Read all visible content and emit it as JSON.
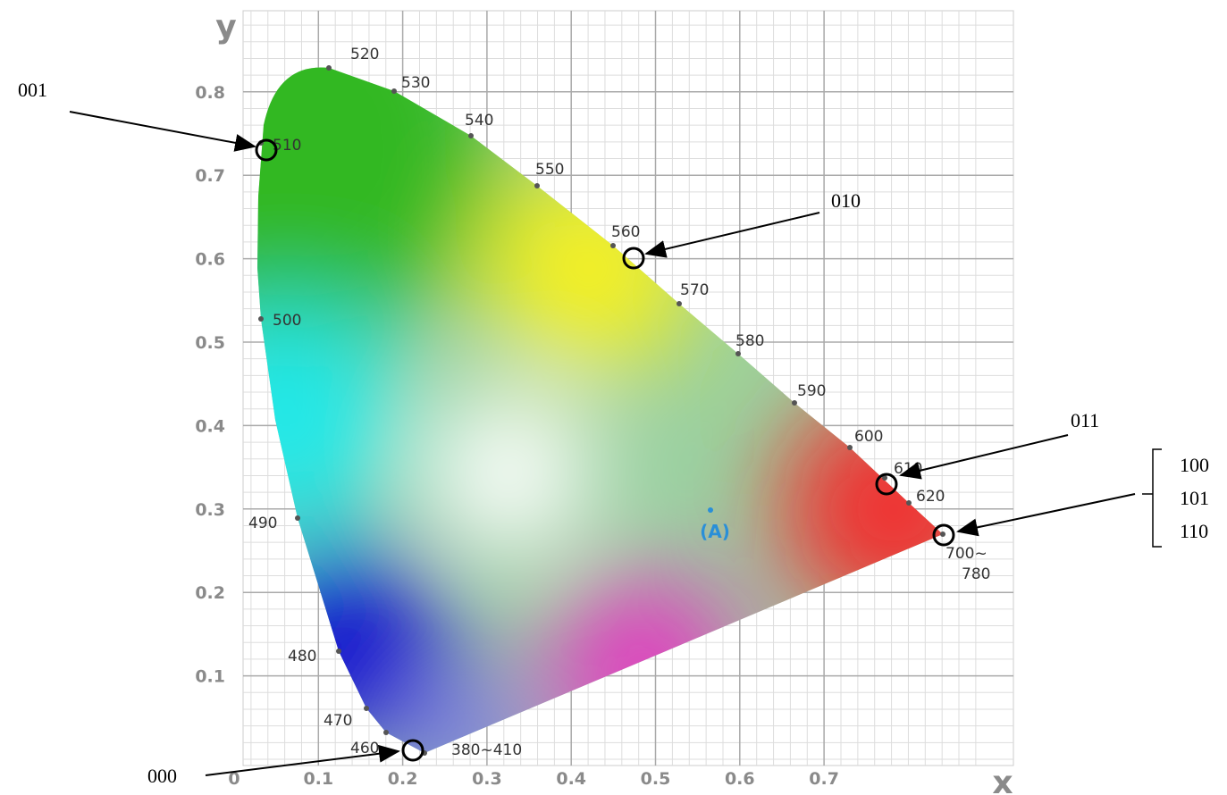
{
  "axes": {
    "x_label": "x",
    "y_label": "y",
    "xticks": [
      0,
      0.1,
      0.2,
      0.3,
      0.4,
      0.5,
      0.6,
      0.7
    ],
    "yticks": [
      0.1,
      0.2,
      0.3,
      0.4,
      0.5,
      0.6,
      0.7,
      0.8
    ]
  },
  "wavelengths": [
    "520",
    "530",
    "540",
    "550",
    "560",
    "570",
    "580",
    "590",
    "600",
    "610",
    "620",
    "510",
    "500",
    "490",
    "480",
    "470",
    "460",
    "380~410"
  ],
  "wavelength_end": [
    "700~",
    "780"
  ],
  "illuminant": "(A)",
  "annotations": [
    "001",
    "010",
    "011",
    "000"
  ],
  "bracket": [
    "100",
    "101",
    "110"
  ]
}
